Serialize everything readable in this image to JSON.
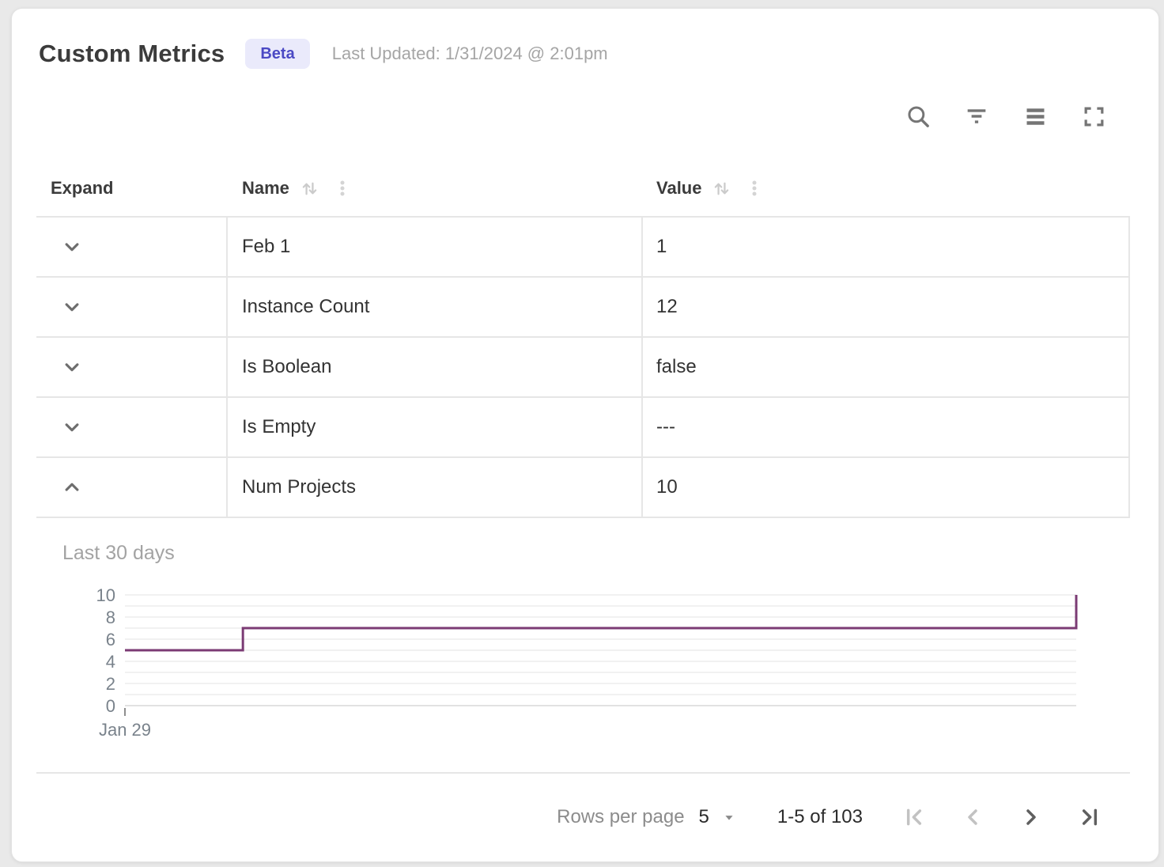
{
  "header": {
    "title": "Custom Metrics",
    "badge": "Beta",
    "last_updated": "Last Updated: 1/31/2024 @ 2:01pm"
  },
  "toolbar": {
    "icons": [
      "search",
      "filter",
      "density",
      "fullscreen"
    ]
  },
  "table": {
    "columns": [
      {
        "label": "Expand",
        "sortable": false
      },
      {
        "label": "Name",
        "sortable": true
      },
      {
        "label": "Value",
        "sortable": true
      }
    ],
    "rows": [
      {
        "name": "Feb 1",
        "value": "1",
        "expanded": false
      },
      {
        "name": "Instance Count",
        "value": "12",
        "expanded": false
      },
      {
        "name": "Is Boolean",
        "value": "false",
        "expanded": false
      },
      {
        "name": "Is Empty",
        "value": "---",
        "expanded": false
      },
      {
        "name": "Num Projects",
        "value": "10",
        "expanded": true
      }
    ]
  },
  "chart_data": {
    "type": "line",
    "title": "Last 30 days",
    "line_style": "step-after",
    "color": "#7B3B74",
    "x_start_label": "Jan 29",
    "ylim": [
      0,
      10
    ],
    "y_ticks": [
      0,
      2,
      4,
      6,
      8,
      10
    ],
    "grid_step": 1,
    "grid": true,
    "legend": "none",
    "points": [
      {
        "t": 0,
        "value": 5
      },
      {
        "t": 0.124,
        "value": 7
      },
      {
        "t": 1,
        "value": 10
      }
    ]
  },
  "footer": {
    "rows_per_page_label": "Rows per page",
    "rows_per_page_value": "5",
    "range_label": "1-5 of 103"
  },
  "colors": {
    "accent_line": "#7B3B74",
    "badge_bg": "#EAEAFB",
    "badge_text": "#4B49C4",
    "row_border": "#E6E6E6",
    "muted_text": "#A3A3A3"
  }
}
